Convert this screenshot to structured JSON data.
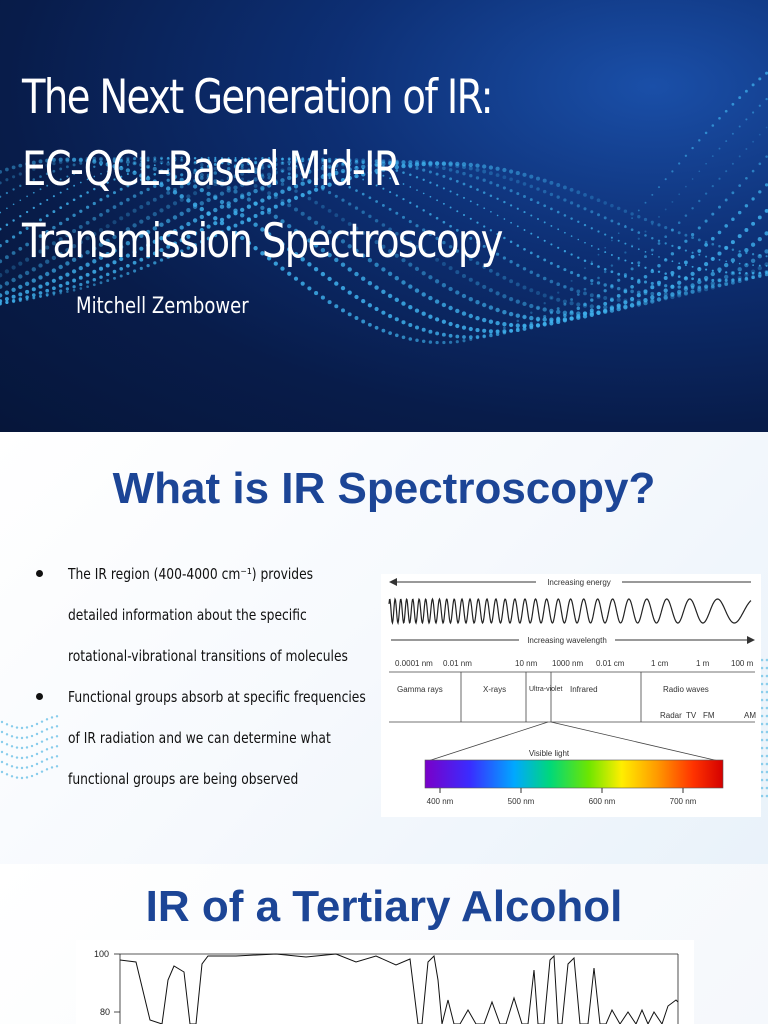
{
  "slide1": {
    "title_lines": [
      "The Next Generation of IR:",
      "EC-QCL-Based Mid-IR",
      "Transmission Spectroscopy"
    ],
    "author": "Mitchell Zembower"
  },
  "slide2": {
    "heading": "What is IR Spectroscopy?",
    "bullets": [
      "The IR region (400-4000 cm⁻¹) provides detailed information about the specific rotational-vibrational transitions of molecules",
      "Functional groups absorb at specific frequencies of IR radiation and we can determine what functional groups are being observed"
    ],
    "spectrum_figure": {
      "energy_label": "Increasing energy",
      "wavelength_label": "Increasing wavelength",
      "scale_ticks": [
        "0.0001 nm",
        "0.01 nm",
        "10 nm",
        "1000 nm",
        "0.01 cm",
        "1 cm",
        "1 m",
        "100 m"
      ],
      "regions": [
        "Gamma rays",
        "X-rays",
        "Ultra-violet",
        "Infrared",
        "Radio waves"
      ],
      "radio_bands": [
        "Radar",
        "TV",
        "FM",
        "AM"
      ],
      "visible_label": "Visible light",
      "visible_ticks": [
        "400 nm",
        "500 nm",
        "600 nm",
        "700 nm"
      ]
    }
  },
  "slide3": {
    "heading": "IR of a Tertiary Alcohol",
    "plot": {
      "y_ticks": [
        "100",
        "80"
      ]
    }
  }
}
